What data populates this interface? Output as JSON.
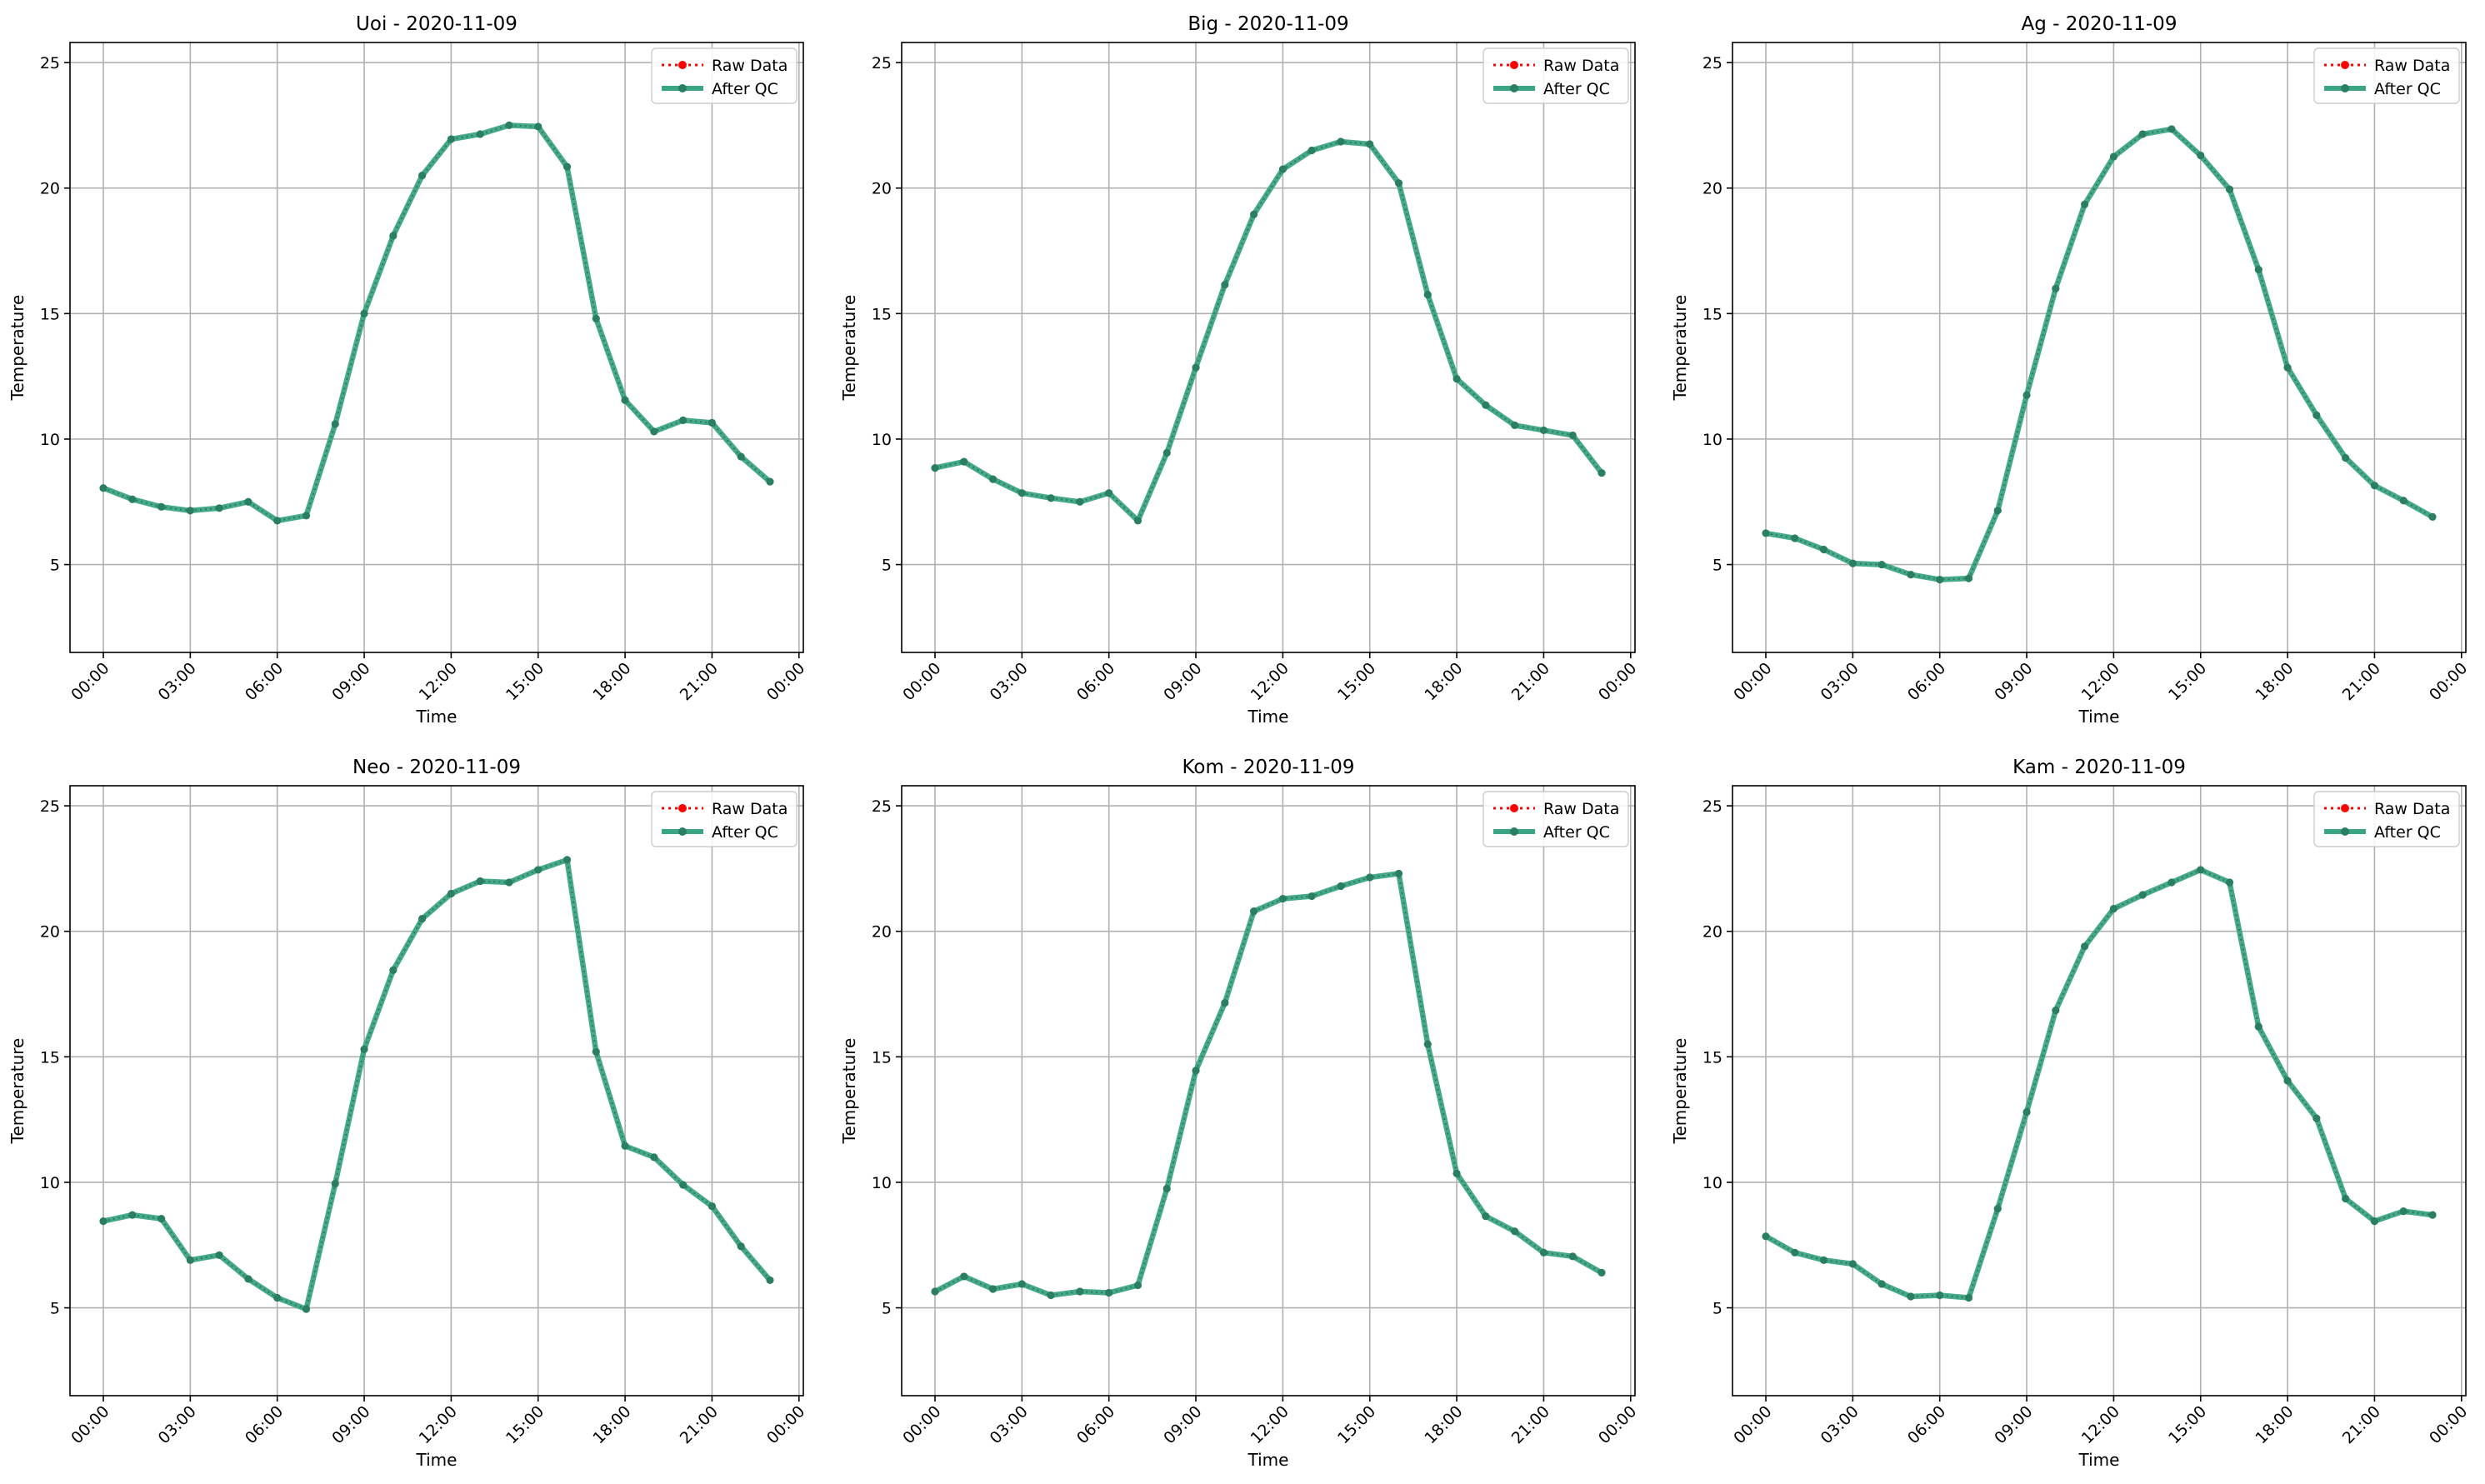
{
  "figure": {
    "legend": {
      "raw_label": "Raw Data",
      "qc_label": "After QC",
      "placement": "top-right"
    }
  },
  "colors": {
    "raw": "#ff0000",
    "qc_line": "#3aa585",
    "qc_marker": "#2a7f62",
    "grid": "#b0b0b0",
    "axis": "#000000"
  },
  "chart_data": [
    {
      "type": "line",
      "title": "Uoi - 2020-11-09",
      "xlabel": "Time",
      "ylabel": "Temperature",
      "xlim": [
        -1.15,
        24.15
      ],
      "ylim": [
        1.5,
        25.8
      ],
      "xticks": [
        0,
        3,
        6,
        9,
        12,
        15,
        18,
        21,
        24
      ],
      "xtick_labels": [
        "00:00",
        "03:00",
        "06:00",
        "09:00",
        "12:00",
        "15:00",
        "18:00",
        "21:00",
        "00:00"
      ],
      "yticks": [
        5,
        10,
        15,
        20,
        25
      ],
      "grid": true,
      "legend_placement": "top-right",
      "x": [
        0,
        1,
        2,
        3,
        4,
        5,
        6,
        7,
        8,
        9,
        10,
        11,
        12,
        13,
        14,
        15,
        16,
        17,
        18,
        19,
        20,
        21,
        22,
        23
      ],
      "series": [
        {
          "name": "Raw Data",
          "values": [
            8.05,
            7.6,
            7.3,
            7.15,
            7.25,
            7.5,
            6.75,
            6.95,
            10.6,
            15.0,
            18.1,
            20.5,
            21.95,
            22.15,
            22.5,
            22.45,
            20.85,
            14.8,
            11.55,
            10.3,
            10.75,
            10.65,
            9.3,
            8.3
          ]
        },
        {
          "name": "After QC",
          "values": [
            8.05,
            7.6,
            7.3,
            7.15,
            7.25,
            7.5,
            6.75,
            6.95,
            10.6,
            15.0,
            18.1,
            20.5,
            21.95,
            22.15,
            22.5,
            22.45,
            20.85,
            14.8,
            11.55,
            10.3,
            10.75,
            10.65,
            9.3,
            8.3
          ]
        }
      ]
    },
    {
      "type": "line",
      "title": "Big - 2020-11-09",
      "xlabel": "Time",
      "ylabel": "Temperature",
      "xlim": [
        -1.15,
        24.15
      ],
      "ylim": [
        1.5,
        25.8
      ],
      "xticks": [
        0,
        3,
        6,
        9,
        12,
        15,
        18,
        21,
        24
      ],
      "xtick_labels": [
        "00:00",
        "03:00",
        "06:00",
        "09:00",
        "12:00",
        "15:00",
        "18:00",
        "21:00",
        "00:00"
      ],
      "yticks": [
        5,
        10,
        15,
        20,
        25
      ],
      "grid": true,
      "legend_placement": "top-right",
      "x": [
        0,
        1,
        2,
        3,
        4,
        5,
        6,
        7,
        8,
        9,
        10,
        11,
        12,
        13,
        14,
        15,
        16,
        17,
        18,
        19,
        20,
        21,
        22,
        23
      ],
      "series": [
        {
          "name": "Raw Data",
          "values": [
            8.85,
            9.1,
            8.4,
            7.85,
            7.65,
            7.5,
            7.85,
            6.75,
            9.45,
            12.85,
            16.15,
            18.95,
            20.75,
            21.5,
            21.85,
            21.75,
            20.2,
            15.75,
            12.4,
            11.35,
            10.55,
            10.35,
            10.15,
            8.65
          ]
        },
        {
          "name": "After QC",
          "values": [
            8.85,
            9.1,
            8.4,
            7.85,
            7.65,
            7.5,
            7.85,
            6.75,
            9.45,
            12.85,
            16.15,
            18.95,
            20.75,
            21.5,
            21.85,
            21.75,
            20.2,
            15.75,
            12.4,
            11.35,
            10.55,
            10.35,
            10.15,
            8.65
          ]
        }
      ]
    },
    {
      "type": "line",
      "title": "Ag - 2020-11-09",
      "xlabel": "Time",
      "ylabel": "Temperature",
      "xlim": [
        -1.15,
        24.15
      ],
      "ylim": [
        1.5,
        25.8
      ],
      "xticks": [
        0,
        3,
        6,
        9,
        12,
        15,
        18,
        21,
        24
      ],
      "xtick_labels": [
        "00:00",
        "03:00",
        "06:00",
        "09:00",
        "12:00",
        "15:00",
        "18:00",
        "21:00",
        "00:00"
      ],
      "yticks": [
        5,
        10,
        15,
        20,
        25
      ],
      "grid": true,
      "legend_placement": "top-right",
      "x": [
        0,
        1,
        2,
        3,
        4,
        5,
        6,
        7,
        8,
        9,
        10,
        11,
        12,
        13,
        14,
        15,
        16,
        17,
        18,
        19,
        20,
        21,
        22,
        23
      ],
      "series": [
        {
          "name": "Raw Data",
          "values": [
            6.25,
            6.05,
            5.6,
            5.05,
            5.0,
            4.6,
            4.4,
            4.45,
            7.15,
            11.75,
            16.0,
            19.35,
            21.25,
            22.15,
            22.35,
            21.3,
            19.95,
            16.75,
            12.85,
            10.95,
            9.25,
            8.15,
            7.55,
            6.9
          ]
        },
        {
          "name": "After QC",
          "values": [
            6.25,
            6.05,
            5.6,
            5.05,
            5.0,
            4.6,
            4.4,
            4.45,
            7.15,
            11.75,
            16.0,
            19.35,
            21.25,
            22.15,
            22.35,
            21.3,
            19.95,
            16.75,
            12.85,
            10.95,
            9.25,
            8.15,
            7.55,
            6.9
          ]
        }
      ]
    },
    {
      "type": "line",
      "title": "Neo - 2020-11-09",
      "xlabel": "Time",
      "ylabel": "Temperature",
      "xlim": [
        -1.15,
        24.15
      ],
      "ylim": [
        1.5,
        25.8
      ],
      "xticks": [
        0,
        3,
        6,
        9,
        12,
        15,
        18,
        21,
        24
      ],
      "xtick_labels": [
        "00:00",
        "03:00",
        "06:00",
        "09:00",
        "12:00",
        "15:00",
        "18:00",
        "21:00",
        "00:00"
      ],
      "yticks": [
        5,
        10,
        15,
        20,
        25
      ],
      "grid": true,
      "legend_placement": "top-right",
      "x": [
        0,
        1,
        2,
        3,
        4,
        5,
        6,
        7,
        8,
        9,
        10,
        11,
        12,
        13,
        14,
        15,
        16,
        17,
        18,
        19,
        20,
        21,
        22,
        23
      ],
      "series": [
        {
          "name": "Raw Data",
          "values": [
            8.45,
            8.7,
            8.55,
            6.9,
            7.1,
            6.15,
            5.4,
            4.95,
            9.95,
            15.3,
            18.45,
            20.5,
            21.5,
            22.0,
            21.95,
            22.45,
            22.85,
            15.2,
            11.45,
            11.0,
            9.9,
            9.05,
            7.45,
            6.1
          ]
        },
        {
          "name": "After QC",
          "values": [
            8.45,
            8.7,
            8.55,
            6.9,
            7.1,
            6.15,
            5.4,
            4.95,
            9.95,
            15.3,
            18.45,
            20.5,
            21.5,
            22.0,
            21.95,
            22.45,
            22.85,
            15.2,
            11.45,
            11.0,
            9.9,
            9.05,
            7.45,
            6.1
          ]
        }
      ]
    },
    {
      "type": "line",
      "title": "Kom - 2020-11-09",
      "xlabel": "Time",
      "ylabel": "Temperature",
      "xlim": [
        -1.15,
        24.15
      ],
      "ylim": [
        1.5,
        25.8
      ],
      "xticks": [
        0,
        3,
        6,
        9,
        12,
        15,
        18,
        21,
        24
      ],
      "xtick_labels": [
        "00:00",
        "03:00",
        "06:00",
        "09:00",
        "12:00",
        "15:00",
        "18:00",
        "21:00",
        "00:00"
      ],
      "yticks": [
        5,
        10,
        15,
        20,
        25
      ],
      "grid": true,
      "legend_placement": "top-right",
      "x": [
        0,
        1,
        2,
        3,
        4,
        5,
        6,
        7,
        8,
        9,
        10,
        11,
        12,
        13,
        14,
        15,
        16,
        17,
        18,
        19,
        20,
        21,
        22,
        23
      ],
      "series": [
        {
          "name": "Raw Data",
          "values": [
            5.65,
            6.25,
            5.75,
            5.95,
            5.5,
            5.65,
            5.6,
            5.9,
            9.75,
            14.45,
            17.15,
            20.8,
            21.3,
            21.4,
            21.8,
            22.15,
            22.3,
            15.5,
            10.35,
            8.65,
            8.05,
            7.2,
            7.05,
            6.4
          ]
        },
        {
          "name": "After QC",
          "values": [
            5.65,
            6.25,
            5.75,
            5.95,
            5.5,
            5.65,
            5.6,
            5.9,
            9.75,
            14.45,
            17.15,
            20.8,
            21.3,
            21.4,
            21.8,
            22.15,
            22.3,
            15.5,
            10.35,
            8.65,
            8.05,
            7.2,
            7.05,
            6.4
          ]
        }
      ]
    },
    {
      "type": "line",
      "title": "Kam - 2020-11-09",
      "xlabel": "Time",
      "ylabel": "Temperature",
      "xlim": [
        -1.15,
        24.15
      ],
      "ylim": [
        1.5,
        25.8
      ],
      "xticks": [
        0,
        3,
        6,
        9,
        12,
        15,
        18,
        21,
        24
      ],
      "xtick_labels": [
        "00:00",
        "03:00",
        "06:00",
        "09:00",
        "12:00",
        "15:00",
        "18:00",
        "21:00",
        "00:00"
      ],
      "yticks": [
        5,
        10,
        15,
        20,
        25
      ],
      "grid": true,
      "legend_placement": "top-right",
      "x": [
        0,
        1,
        2,
        3,
        4,
        5,
        6,
        7,
        8,
        9,
        10,
        11,
        12,
        13,
        14,
        15,
        16,
        17,
        18,
        19,
        20,
        21,
        22,
        23
      ],
      "series": [
        {
          "name": "Raw Data",
          "values": [
            7.85,
            7.2,
            6.9,
            6.75,
            5.95,
            5.45,
            5.5,
            5.4,
            8.95,
            12.8,
            16.85,
            19.4,
            20.9,
            21.45,
            21.95,
            22.45,
            21.95,
            16.2,
            14.05,
            12.55,
            9.35,
            8.45,
            8.85,
            8.7
          ]
        },
        {
          "name": "After QC",
          "values": [
            7.85,
            7.2,
            6.9,
            6.75,
            5.95,
            5.45,
            5.5,
            5.4,
            8.95,
            12.8,
            16.85,
            19.4,
            20.9,
            21.45,
            21.95,
            22.45,
            21.95,
            16.2,
            14.05,
            12.55,
            9.35,
            8.45,
            8.85,
            8.7
          ]
        }
      ]
    }
  ]
}
